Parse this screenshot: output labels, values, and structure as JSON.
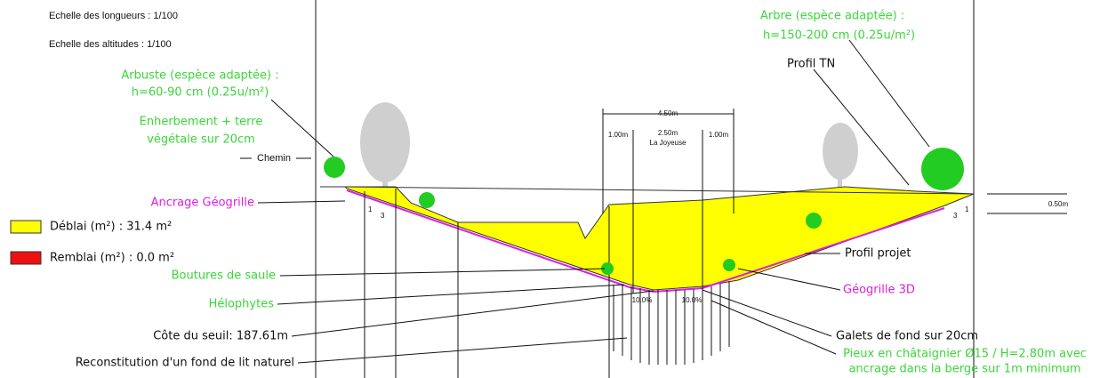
{
  "scales": {
    "lengths": "Echelle des longueurs : 1/100",
    "altitudes": "Echelle des altitudes : 1/100"
  },
  "legend": {
    "deblai": "Déblai (m²) : 31.4 m²",
    "remblai": "Remblai (m²) : 0.0 m²"
  },
  "labels": {
    "arbuste": [
      "Arbuste (espèce adaptée) :",
      "h=60-90 cm (0.25u/m²)"
    ],
    "enherbement": [
      "Enherbement + terre",
      "végétale sur 20cm"
    ],
    "chemin": "Chemin",
    "ancrage": "Ancrage Géogrille",
    "boutures": "Boutures de saule",
    "helophytes": "Hélophytes",
    "seuil": "Côte du seuil: 187.61m",
    "reconstitution": "Reconstitution d'un fond de lit naturel",
    "arbre": [
      "Arbre  (espèce adaptée) :",
      "h=150-200 cm (0.25u/m²)"
    ],
    "profil_tn": "Profil TN",
    "profil_projet": "Profil projet",
    "geogrille": "Géogrille 3D",
    "galets": "Galets de fond sur 20cm",
    "pieux": [
      "Pieux en châtaignier Ø15 / H=2.80m avec",
      "ancrage dans la berge sur 1m minimum"
    ]
  },
  "dimensions": {
    "total": "4.50m",
    "left": "1.00m",
    "middle": "2.50m",
    "right": "1.00m",
    "river": "La Joyeuse",
    "height": "0.50m",
    "slope_left": [
      "1",
      "3"
    ],
    "slope_right": [
      "3",
      "1"
    ],
    "gradient": [
      "10.0%",
      "10.0%"
    ]
  }
}
